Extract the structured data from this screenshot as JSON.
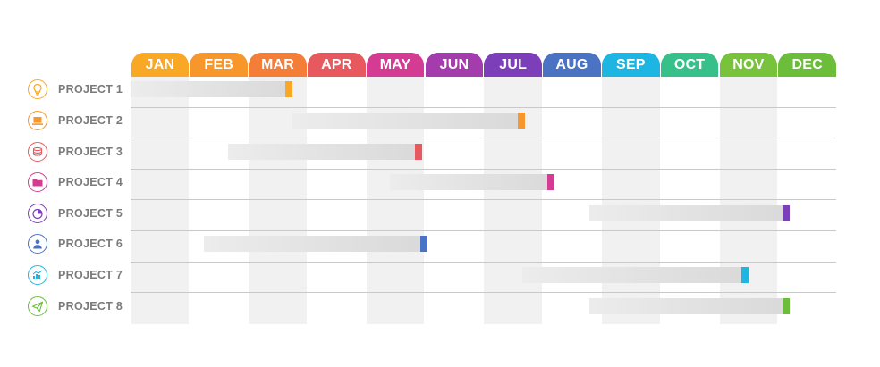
{
  "chart_data": {
    "type": "gantt",
    "months": [
      "JAN",
      "FEB",
      "MAR",
      "APR",
      "MAY",
      "JUN",
      "JUL",
      "AUG",
      "SEP",
      "OCT",
      "NOV",
      "DEC"
    ],
    "month_colors": [
      "#f9a825",
      "#f7962a",
      "#f47d38",
      "#e8595f",
      "#d43b93",
      "#a53cae",
      "#7d3fb9",
      "#4a73c4",
      "#1db6e2",
      "#37c08a",
      "#79c23b",
      "#6cbd3a"
    ],
    "shaded_months": [
      0,
      2,
      4,
      6,
      8,
      10
    ],
    "projects": [
      {
        "label": "PROJECT 1",
        "icon": "lightbulb-icon",
        "color": "#f9a825",
        "start": 0.0,
        "end": 2.75
      },
      {
        "label": "PROJECT 2",
        "icon": "laptop-icon",
        "color": "#f7962a",
        "start": 2.75,
        "end": 6.7
      },
      {
        "label": "PROJECT 3",
        "icon": "coins-icon",
        "color": "#e8595f",
        "start": 1.65,
        "end": 4.95
      },
      {
        "label": "PROJECT 4",
        "icon": "folder-icon",
        "color": "#d43b93",
        "start": 4.4,
        "end": 7.2
      },
      {
        "label": "PROJECT 5",
        "icon": "pie-chart-icon",
        "color": "#7d3fb9",
        "start": 7.8,
        "end": 11.2
      },
      {
        "label": "PROJECT 6",
        "icon": "person-icon",
        "color": "#4a73c4",
        "start": 1.25,
        "end": 5.05
      },
      {
        "label": "PROJECT 7",
        "icon": "bar-chart-icon",
        "color": "#1db6e2",
        "start": 6.65,
        "end": 10.5
      },
      {
        "label": "PROJECT 8",
        "icon": "paper-plane-icon",
        "color": "#6cbd3a",
        "start": 7.8,
        "end": 11.2
      }
    ]
  }
}
